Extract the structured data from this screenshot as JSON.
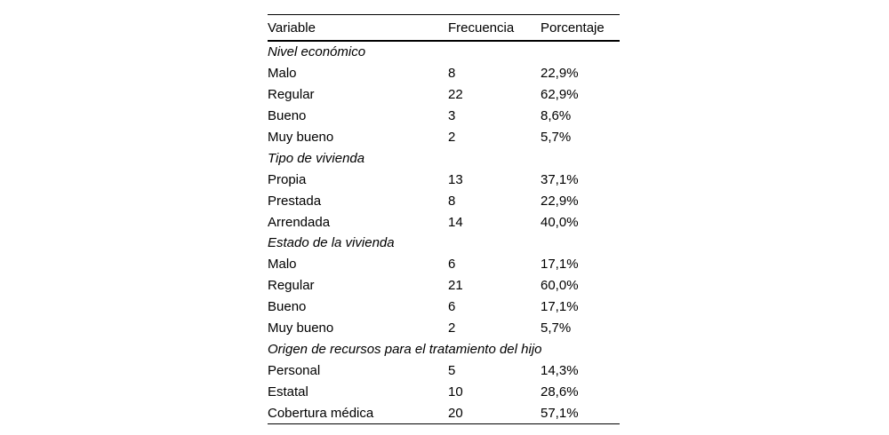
{
  "table": {
    "columns": {
      "variable": "Variable",
      "frecuencia": "Frecuencia",
      "porcentaje": "Porcentaje"
    },
    "sections": [
      {
        "label": "Nivel económico",
        "rows": [
          {
            "variable": "Malo",
            "frecuencia": "8",
            "porcentaje": "22,9%"
          },
          {
            "variable": "Regular",
            "frecuencia": "22",
            "porcentaje": "62,9%"
          },
          {
            "variable": "Bueno",
            "frecuencia": "3",
            "porcentaje": "8,6%"
          },
          {
            "variable": "Muy bueno",
            "frecuencia": "2",
            "porcentaje": "5,7%"
          }
        ]
      },
      {
        "label": "Tipo de vivienda",
        "rows": [
          {
            "variable": "Propia",
            "frecuencia": "13",
            "porcentaje": "37,1%"
          },
          {
            "variable": "Prestada",
            "frecuencia": "8",
            "porcentaje": "22,9%"
          },
          {
            "variable": "Arrendada",
            "frecuencia": "14",
            "porcentaje": "40,0%"
          }
        ]
      },
      {
        "label": "Estado de la vivienda",
        "rows": [
          {
            "variable": "Malo",
            "frecuencia": "6",
            "porcentaje": "17,1%"
          },
          {
            "variable": "Regular",
            "frecuencia": "21",
            "porcentaje": "60,0%"
          },
          {
            "variable": "Bueno",
            "frecuencia": "6",
            "porcentaje": "17,1%"
          },
          {
            "variable": "Muy bueno",
            "frecuencia": "2",
            "porcentaje": "5,7%"
          }
        ]
      },
      {
        "label": "Origen de recursos para el tratamiento del hijo",
        "rows": [
          {
            "variable": "Personal",
            "frecuencia": "5",
            "porcentaje": "14,3%"
          },
          {
            "variable": "Estatal",
            "frecuencia": "10",
            "porcentaje": "28,6%"
          },
          {
            "variable": "Cobertura médica",
            "frecuencia": "20",
            "porcentaje": "57,1%"
          }
        ]
      }
    ],
    "colors": {
      "text": "#000000",
      "background": "#ffffff",
      "rule": "#000000"
    }
  }
}
